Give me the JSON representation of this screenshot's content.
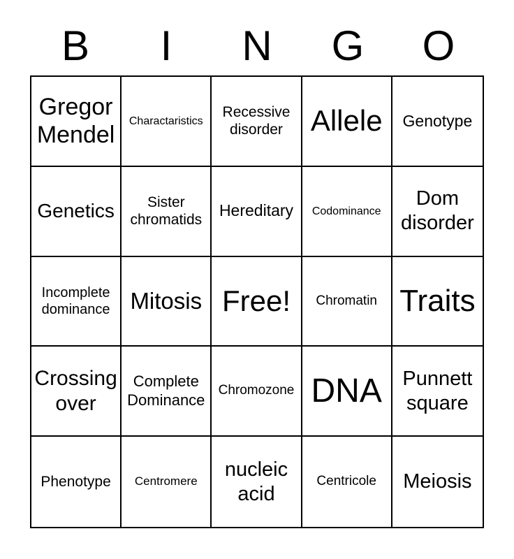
{
  "page": {
    "background": "#ffffff",
    "text_color": "#000000",
    "grid_line_color": "#000000"
  },
  "title": {
    "text": "BINGO",
    "letters": [
      "B",
      "I",
      "N",
      "G",
      "O"
    ]
  },
  "grid": {
    "rows": 5,
    "cols": 5,
    "free_space_label": "Free!",
    "cells": [
      {
        "text": "Gregor Mendel"
      },
      {
        "text": "Charactaristics"
      },
      {
        "text": "Recessive disorder"
      },
      {
        "text": "Allele"
      },
      {
        "text": "Genotype"
      },
      {
        "text": "Genetics"
      },
      {
        "text": "Sister chromatids"
      },
      {
        "text": "Hereditary"
      },
      {
        "text": "Codominance"
      },
      {
        "text": "Dom disorder"
      },
      {
        "text": "Incomplete dominance"
      },
      {
        "text": "Mitosis"
      },
      {
        "text": "Free!"
      },
      {
        "text": "Chromatin"
      },
      {
        "text": "Traits"
      },
      {
        "text": "Crossing over"
      },
      {
        "text": "Complete Dominance"
      },
      {
        "text": "Chromozone"
      },
      {
        "text": "DNA"
      },
      {
        "text": "Punnett square"
      },
      {
        "text": "Phenotype"
      },
      {
        "text": "Centromere"
      },
      {
        "text": "nucleic acid"
      },
      {
        "text": "Centricole"
      },
      {
        "text": "Meiosis"
      }
    ]
  }
}
